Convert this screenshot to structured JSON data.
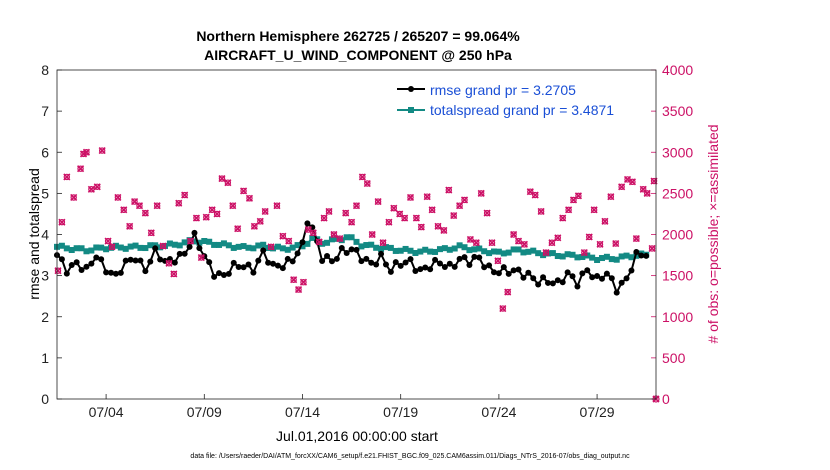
{
  "chart_data": {
    "type": "line",
    "title_line1": "Northern Hemisphere 262725 / 265207 = 99.064%",
    "title_line2": "AIRCRAFT_U_WIND_COMPONENT @ 250 hPa",
    "ylabel_left": "rmse and totalspread",
    "ylabel_right": "# of obs: o=possible; ×=assimilated",
    "xlabel": "Jul.01,2016 00:00:00 start",
    "footnote": "data file: /Users/raeder/DAI/ATM_forcXX/CAM6_setup/f.e21.FHIST_BGC.f09_025.CAM6assim.011/Diags_NTrS_2016-07/obs_diag_output.nc",
    "xlim": [
      1.5,
      32.0
    ],
    "ylim_left": [
      0,
      8
    ],
    "ylim_right": [
      0,
      4000
    ],
    "yticks_left": [
      "0",
      "1",
      "2",
      "3",
      "4",
      "5",
      "6",
      "7",
      "8"
    ],
    "yticks_right": [
      "0",
      "500",
      "1000",
      "1500",
      "2000",
      "2500",
      "3000",
      "3500",
      "4000"
    ],
    "xticks": [
      {
        "value": 4,
        "label": "07/04"
      },
      {
        "value": 9,
        "label": "07/09"
      },
      {
        "value": 14,
        "label": "07/14"
      },
      {
        "value": 19,
        "label": "07/19"
      },
      {
        "value": 24,
        "label": "07/24"
      },
      {
        "value": 29,
        "label": "07/29"
      }
    ],
    "legend": [
      {
        "name": "rmse",
        "label": "rmse grand pr = 3.2705",
        "color": "#000000"
      },
      {
        "name": "totalspread",
        "label": "totalspread grand pr = 3.4871",
        "color": "#138a84"
      }
    ],
    "colors": {
      "rmse": "#000000",
      "spread": "#138a84",
      "obs": "#cc1166"
    },
    "rmse_anchors": [
      [
        1.5,
        3.45
      ],
      [
        2.0,
        3.15
      ],
      [
        2.5,
        3.35
      ],
      [
        3.0,
        3.1
      ],
      [
        3.5,
        3.45
      ],
      [
        4.0,
        3.2
      ],
      [
        4.5,
        3.0
      ],
      [
        5.0,
        3.25
      ],
      [
        5.5,
        3.45
      ],
      [
        6.0,
        3.2
      ],
      [
        6.5,
        3.55
      ],
      [
        7.0,
        3.3
      ],
      [
        7.5,
        3.45
      ],
      [
        8.0,
        3.55
      ],
      [
        8.5,
        3.9
      ],
      [
        9.0,
        3.5
      ],
      [
        9.5,
        3.1
      ],
      [
        10.0,
        2.95
      ],
      [
        10.5,
        3.2
      ],
      [
        11.0,
        3.3
      ],
      [
        11.5,
        3.15
      ],
      [
        12.0,
        3.5
      ],
      [
        12.5,
        3.25
      ],
      [
        13.0,
        3.3
      ],
      [
        13.5,
        3.35
      ],
      [
        14.0,
        3.7
      ],
      [
        14.2,
        4.4
      ],
      [
        14.5,
        4.2
      ],
      [
        15.0,
        3.45
      ],
      [
        15.5,
        3.3
      ],
      [
        16.0,
        3.6
      ],
      [
        16.5,
        3.7
      ],
      [
        17.0,
        3.4
      ],
      [
        17.5,
        3.25
      ],
      [
        18.0,
        3.5
      ],
      [
        18.5,
        3.15
      ],
      [
        19.0,
        3.25
      ],
      [
        19.5,
        3.35
      ],
      [
        20.0,
        3.15
      ],
      [
        20.5,
        3.2
      ],
      [
        21.0,
        3.3
      ],
      [
        21.5,
        3.25
      ],
      [
        22.0,
        3.4
      ],
      [
        22.5,
        3.3
      ],
      [
        23.0,
        3.45
      ],
      [
        23.5,
        3.2
      ],
      [
        24.0,
        3.05
      ],
      [
        24.5,
        3.1
      ],
      [
        25.0,
        3.15
      ],
      [
        25.5,
        3.0
      ],
      [
        26.0,
        2.8
      ],
      [
        26.5,
        2.9
      ],
      [
        27.0,
        2.85
      ],
      [
        27.5,
        3.0
      ],
      [
        28.0,
        2.8
      ],
      [
        28.5,
        3.2
      ],
      [
        29.0,
        2.9
      ],
      [
        29.5,
        3.0
      ],
      [
        30.0,
        2.7
      ],
      [
        30.5,
        2.95
      ],
      [
        31.0,
        3.45
      ],
      [
        31.5,
        3.5
      ]
    ],
    "spread_anchors": [
      [
        1.5,
        3.7
      ],
      [
        3.0,
        3.62
      ],
      [
        4.0,
        3.68
      ],
      [
        6.0,
        3.7
      ],
      [
        7.5,
        3.75
      ],
      [
        8.5,
        3.85
      ],
      [
        9.5,
        3.78
      ],
      [
        11.0,
        3.68
      ],
      [
        12.0,
        3.72
      ],
      [
        13.0,
        3.65
      ],
      [
        14.0,
        3.72
      ],
      [
        14.5,
        3.9
      ],
      [
        15.0,
        3.8
      ],
      [
        16.0,
        3.9
      ],
      [
        16.3,
        3.95
      ],
      [
        17.0,
        3.75
      ],
      [
        18.0,
        3.68
      ],
      [
        19.0,
        3.62
      ],
      [
        20.0,
        3.58
      ],
      [
        21.0,
        3.62
      ],
      [
        22.0,
        3.7
      ],
      [
        23.0,
        3.62
      ],
      [
        24.0,
        3.55
      ],
      [
        25.0,
        3.62
      ],
      [
        26.0,
        3.55
      ],
      [
        27.0,
        3.5
      ],
      [
        28.0,
        3.48
      ],
      [
        29.0,
        3.42
      ],
      [
        30.0,
        3.42
      ],
      [
        31.0,
        3.5
      ],
      [
        31.5,
        3.5
      ]
    ],
    "obs_points": [
      [
        1.55,
        1560
      ],
      [
        1.75,
        2150
      ],
      [
        2.0,
        2700
      ],
      [
        2.35,
        2450
      ],
      [
        2.7,
        2800
      ],
      [
        2.85,
        2980
      ],
      [
        3.0,
        3000
      ],
      [
        3.25,
        2550
      ],
      [
        3.55,
        2580
      ],
      [
        3.8,
        3020
      ],
      [
        4.1,
        1920
      ],
      [
        4.3,
        1850
      ],
      [
        4.6,
        2450
      ],
      [
        4.9,
        2300
      ],
      [
        5.2,
        2100
      ],
      [
        5.45,
        2400
      ],
      [
        5.7,
        2350
      ],
      [
        6.0,
        2260
      ],
      [
        6.3,
        2020
      ],
      [
        6.6,
        2350
      ],
      [
        6.9,
        1860
      ],
      [
        7.2,
        1650
      ],
      [
        7.45,
        1520
      ],
      [
        7.7,
        2380
      ],
      [
        8.0,
        2480
      ],
      [
        8.3,
        1920
      ],
      [
        8.6,
        2200
      ],
      [
        8.85,
        1720
      ],
      [
        9.1,
        2210
      ],
      [
        9.4,
        2300
      ],
      [
        9.65,
        2250
      ],
      [
        9.9,
        2680
      ],
      [
        10.2,
        2630
      ],
      [
        10.45,
        2350
      ],
      [
        10.7,
        2070
      ],
      [
        11.0,
        2530
      ],
      [
        11.3,
        2440
      ],
      [
        11.55,
        2100
      ],
      [
        11.85,
        2160
      ],
      [
        12.1,
        2280
      ],
      [
        12.4,
        1850
      ],
      [
        12.7,
        2350
      ],
      [
        13.0,
        1980
      ],
      [
        13.3,
        1920
      ],
      [
        13.55,
        1450
      ],
      [
        13.8,
        1330
      ],
      [
        14.05,
        1420
      ],
      [
        14.3,
        2060
      ],
      [
        14.55,
        2020
      ],
      [
        14.85,
        1910
      ],
      [
        15.1,
        2200
      ],
      [
        15.35,
        2280
      ],
      [
        15.6,
        2000
      ],
      [
        15.9,
        1950
      ],
      [
        16.2,
        2260
      ],
      [
        16.5,
        2150
      ],
      [
        16.75,
        2350
      ],
      [
        17.05,
        2700
      ],
      [
        17.3,
        2620
      ],
      [
        17.55,
        2000
      ],
      [
        17.85,
        2400
      ],
      [
        18.1,
        1900
      ],
      [
        18.4,
        2150
      ],
      [
        18.65,
        2320
      ],
      [
        18.95,
        2250
      ],
      [
        19.2,
        2200
      ],
      [
        19.5,
        2450
      ],
      [
        19.8,
        2200
      ],
      [
        20.05,
        2090
      ],
      [
        20.35,
        2460
      ],
      [
        20.6,
        2300
      ],
      [
        20.9,
        2100
      ],
      [
        21.2,
        2050
      ],
      [
        21.45,
        2540
      ],
      [
        21.7,
        2230
      ],
      [
        22.0,
        2350
      ],
      [
        22.25,
        2420
      ],
      [
        22.55,
        1940
      ],
      [
        22.85,
        1900
      ],
      [
        23.1,
        2500
      ],
      [
        23.4,
        2260
      ],
      [
        23.65,
        1900
      ],
      [
        23.95,
        1680
      ],
      [
        24.2,
        1100
      ],
      [
        24.45,
        1300
      ],
      [
        24.75,
        2000
      ],
      [
        25.0,
        1920
      ],
      [
        25.3,
        1880
      ],
      [
        25.6,
        2520
      ],
      [
        25.85,
        2480
      ],
      [
        26.15,
        2280
      ],
      [
        26.4,
        1780
      ],
      [
        26.7,
        1900
      ],
      [
        27.0,
        1960
      ],
      [
        27.25,
        2200
      ],
      [
        27.55,
        2300
      ],
      [
        27.8,
        2420
      ],
      [
        28.05,
        2470
      ],
      [
        28.35,
        1780
      ],
      [
        28.6,
        1970
      ],
      [
        28.85,
        2300
      ],
      [
        29.15,
        1880
      ],
      [
        29.4,
        2160
      ],
      [
        29.7,
        2460
      ],
      [
        29.95,
        1890
      ],
      [
        30.25,
        2580
      ],
      [
        30.55,
        2670
      ],
      [
        30.8,
        2640
      ],
      [
        31.0,
        1950
      ],
      [
        31.35,
        2550
      ],
      [
        31.55,
        2500
      ],
      [
        31.8,
        1830
      ],
      [
        31.9,
        2650
      ]
    ]
  }
}
